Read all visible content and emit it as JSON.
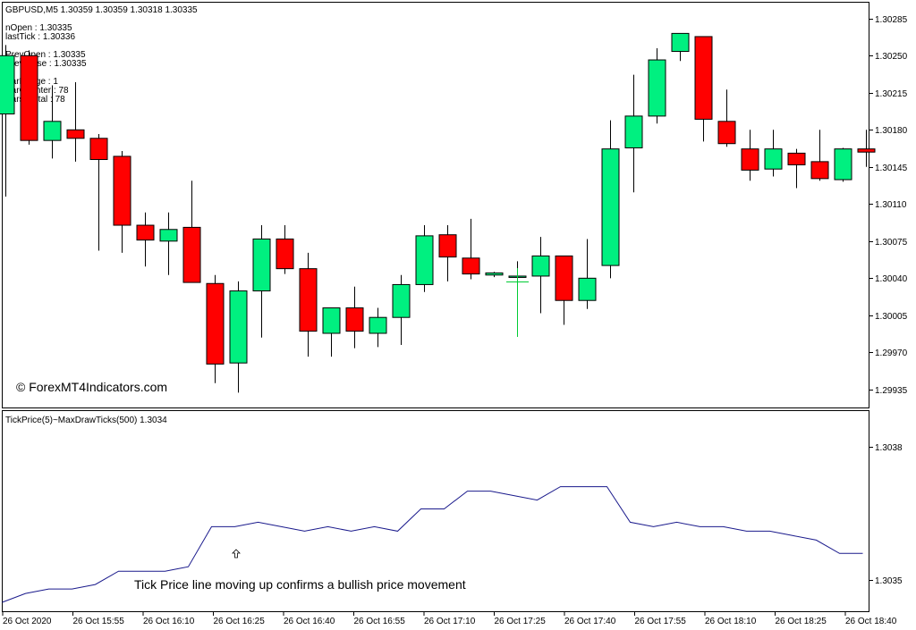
{
  "header": {
    "symbol_line": "GBPUSD,M5  1.30359 1.30359 1.30318 1.30335",
    "info_lines": [
      "nOpen : 1.30335",
      "lastTick : 1.30336",
      "PrevOpen : 1.30335",
      "PrevClose : 1.30335",
      "BarRange : 1",
      "BarCounter : 78",
      "Bars_Total : 78"
    ],
    "watermark": "© ForexMT4Indicators.com"
  },
  "indicator": {
    "label": "TickPrice(5)~MaxDrawTicks(500) 1.3034",
    "annotation": "Tick Price line moving up confirms a bullish price movement",
    "arrow_icon": "up-arrow-icon"
  },
  "colors": {
    "bull": "#00F080",
    "bear": "#FF0000",
    "indicator_line": "#1A1A8C",
    "cursor": "#00CC33"
  },
  "chart_data": [
    {
      "type": "candlestick",
      "symbol": "GBPUSD",
      "timeframe": "M5",
      "ylim": [
        1.29918,
        1.303
      ],
      "y_ticks": [
        "1.30285",
        "1.30250",
        "1.30215",
        "1.30180",
        "1.30145",
        "1.30110",
        "1.30075",
        "1.30040",
        "1.30005",
        "1.29970",
        "1.29935"
      ],
      "x_tick_labels": [
        "26 Oct 2020",
        "26 Oct 15:55",
        "26 Oct 16:10",
        "26 Oct 16:25",
        "26 Oct 16:40",
        "26 Oct 16:55",
        "26 Oct 17:10",
        "26 Oct 17:25",
        "26 Oct 17:40",
        "26 Oct 17:55",
        "26 Oct 18:10",
        "26 Oct 18:25",
        "26 Oct 18:40"
      ],
      "candles": [
        {
          "o": 1.30195,
          "h": 1.3026,
          "l": 1.30117,
          "c": 1.3025
        },
        {
          "o": 1.3025,
          "h": 1.30255,
          "l": 1.30166,
          "c": 1.3017
        },
        {
          "o": 1.3017,
          "h": 1.30222,
          "l": 1.30153,
          "c": 1.30188
        },
        {
          "o": 1.3018,
          "h": 1.30225,
          "l": 1.3015,
          "c": 1.30172
        },
        {
          "o": 1.30172,
          "h": 1.30176,
          "l": 1.30066,
          "c": 1.30152
        },
        {
          "o": 1.30155,
          "h": 1.3016,
          "l": 1.30064,
          "c": 1.3009
        },
        {
          "o": 1.3009,
          "h": 1.30102,
          "l": 1.30051,
          "c": 1.30076
        },
        {
          "o": 1.30075,
          "h": 1.30102,
          "l": 1.30043,
          "c": 1.30086
        },
        {
          "o": 1.30088,
          "h": 1.30132,
          "l": 1.30036,
          "c": 1.30036
        },
        {
          "o": 1.30035,
          "h": 1.30043,
          "l": 1.29941,
          "c": 1.29959
        },
        {
          "o": 1.2996,
          "h": 1.30037,
          "l": 1.29932,
          "c": 1.30028
        },
        {
          "o": 1.30028,
          "h": 1.3009,
          "l": 1.29984,
          "c": 1.30077
        },
        {
          "o": 1.30077,
          "h": 1.3009,
          "l": 1.30044,
          "c": 1.30049
        },
        {
          "o": 1.30049,
          "h": 1.30064,
          "l": 1.29966,
          "c": 1.2999
        },
        {
          "o": 1.29988,
          "h": 1.30012,
          "l": 1.29966,
          "c": 1.30012
        },
        {
          "o": 1.30012,
          "h": 1.30032,
          "l": 1.29974,
          "c": 1.2999
        },
        {
          "o": 1.29988,
          "h": 1.30012,
          "l": 1.29975,
          "c": 1.30003
        },
        {
          "o": 1.30003,
          "h": 1.30043,
          "l": 1.29977,
          "c": 1.30034
        },
        {
          "o": 1.30034,
          "h": 1.3009,
          "l": 1.30027,
          "c": 1.3008
        },
        {
          "o": 1.30081,
          "h": 1.3009,
          "l": 1.30037,
          "c": 1.3006
        },
        {
          "o": 1.30059,
          "h": 1.30096,
          "l": 1.30039,
          "c": 1.30044
        },
        {
          "o": 1.30043,
          "h": 1.30046,
          "l": 1.30041,
          "c": 1.30045
        },
        {
          "o": 1.30042,
          "h": 1.30056,
          "l": 1.29993,
          "c": 1.30042
        },
        {
          "o": 1.30042,
          "h": 1.30079,
          "l": 1.30007,
          "c": 1.30061
        },
        {
          "o": 1.30061,
          "h": 1.30061,
          "l": 1.29996,
          "c": 1.30019
        },
        {
          "o": 1.30019,
          "h": 1.30077,
          "l": 1.30011,
          "c": 1.3004
        },
        {
          "o": 1.30052,
          "h": 1.30189,
          "l": 1.3004,
          "c": 1.30162
        },
        {
          "o": 1.30163,
          "h": 1.30232,
          "l": 1.30121,
          "c": 1.30193
        },
        {
          "o": 1.30193,
          "h": 1.30257,
          "l": 1.30186,
          "c": 1.30246
        },
        {
          "o": 1.30254,
          "h": 1.30271,
          "l": 1.30245,
          "c": 1.30271
        },
        {
          "o": 1.30268,
          "h": 1.30268,
          "l": 1.30169,
          "c": 1.3019
        },
        {
          "o": 1.30188,
          "h": 1.30218,
          "l": 1.30164,
          "c": 1.30167
        },
        {
          "o": 1.30162,
          "h": 1.3018,
          "l": 1.30132,
          "c": 1.30142
        },
        {
          "o": 1.30143,
          "h": 1.3018,
          "l": 1.30136,
          "c": 1.30162
        },
        {
          "o": 1.30158,
          "h": 1.30162,
          "l": 1.30125,
          "c": 1.30147
        },
        {
          "o": 1.3015,
          "h": 1.3018,
          "l": 1.30132,
          "c": 1.30134
        },
        {
          "o": 1.30133,
          "h": 1.30163,
          "l": 1.30131,
          "c": 1.30162
        },
        {
          "o": 1.30162,
          "h": 1.3018,
          "l": 1.30145,
          "c": 1.30159
        }
      ]
    },
    {
      "type": "line",
      "name": "TickPrice(5)~MaxDrawTicks(500)",
      "ylim": [
        1.30343,
        1.30388
      ],
      "y_ticks": [
        "1.3038",
        "1.3035"
      ],
      "values": [
        1.30345,
        1.30347,
        1.30348,
        1.30348,
        1.30349,
        1.30352,
        1.30352,
        1.30352,
        1.30353,
        1.30362,
        1.30362,
        1.30363,
        1.30362,
        1.30361,
        1.30362,
        1.30361,
        1.30362,
        1.30361,
        1.30366,
        1.30366,
        1.3037,
        1.3037,
        1.30369,
        1.30368,
        1.30371,
        1.30371,
        1.30371,
        1.30363,
        1.30362,
        1.30363,
        1.30362,
        1.30362,
        1.30361,
        1.30361,
        1.3036,
        1.30359,
        1.30356,
        1.30356
      ]
    }
  ]
}
